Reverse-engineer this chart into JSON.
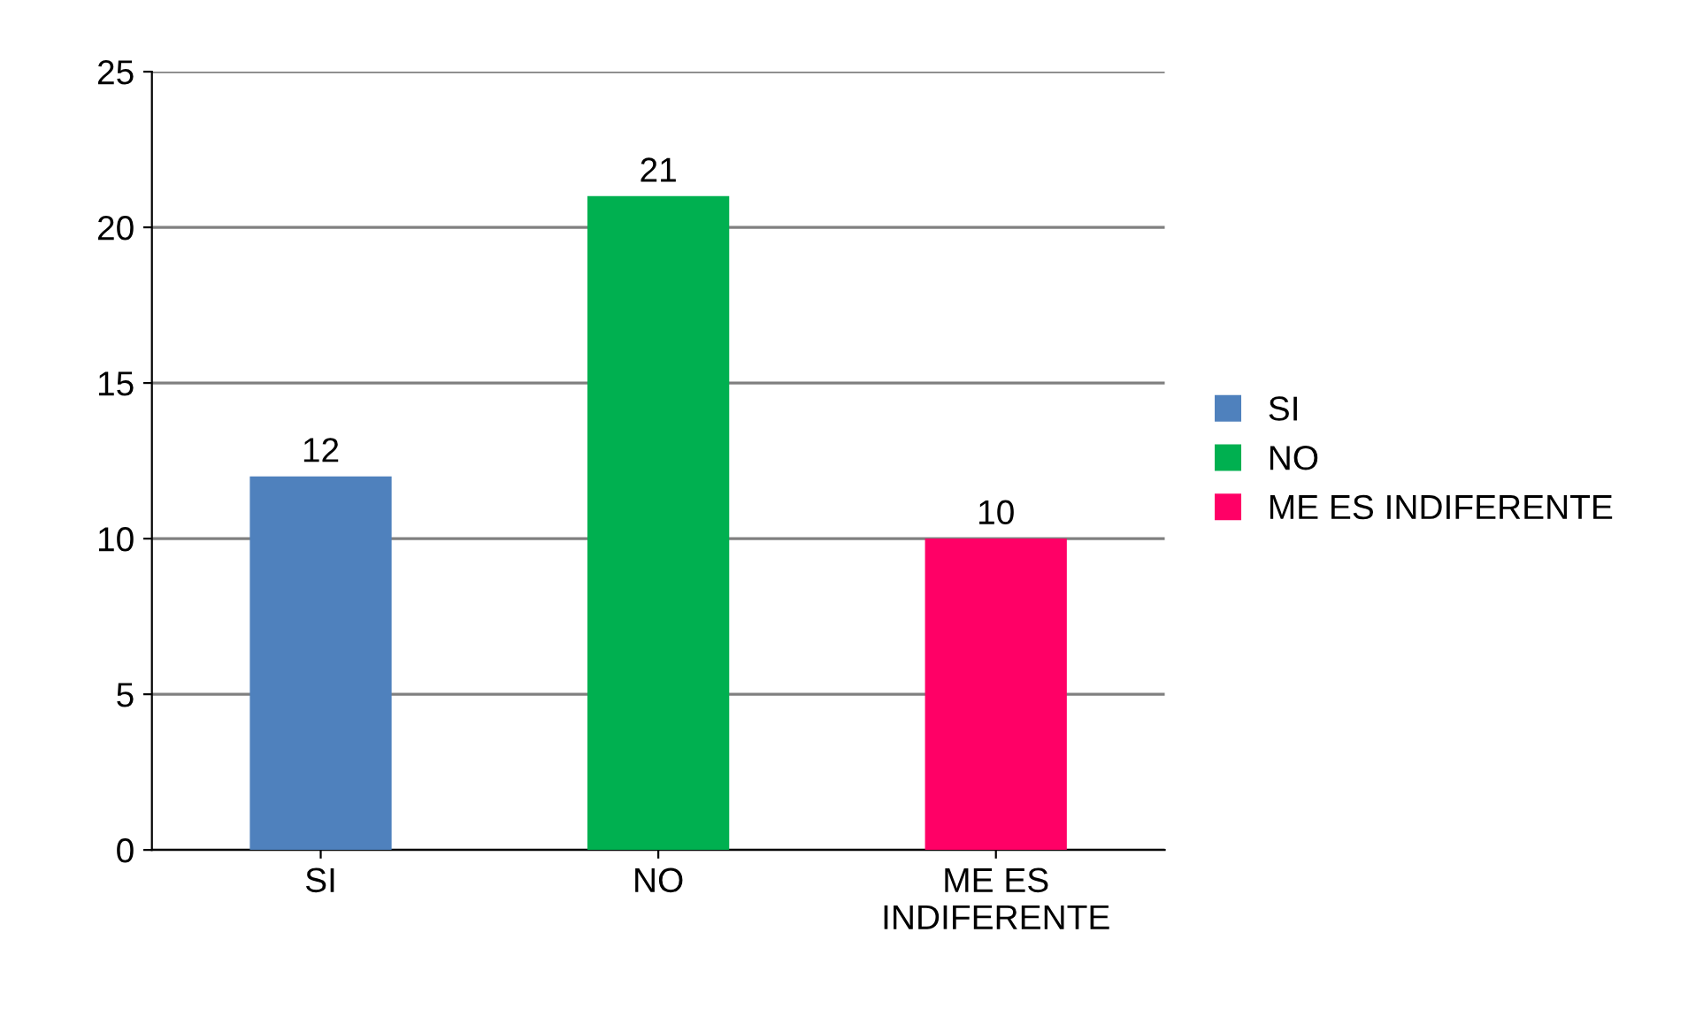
{
  "chart_data": {
    "type": "bar",
    "categories": [
      "SI",
      "NO",
      "ME ES\nINDIFERENTE"
    ],
    "series": [
      {
        "name": "SI",
        "color": "#4f81bd",
        "values": [
          12,
          null,
          null
        ]
      },
      {
        "name": "NO",
        "color": "#00b050",
        "values": [
          null,
          21,
          null
        ]
      },
      {
        "name": "ME ES INDIFERENTE",
        "color": "#ff0066",
        "values": [
          null,
          null,
          10
        ]
      }
    ],
    "ylim": [
      0,
      25
    ],
    "yticks": [
      0,
      5,
      10,
      15,
      20,
      25
    ],
    "grid": "y",
    "legend": "right",
    "data_labels": true
  }
}
